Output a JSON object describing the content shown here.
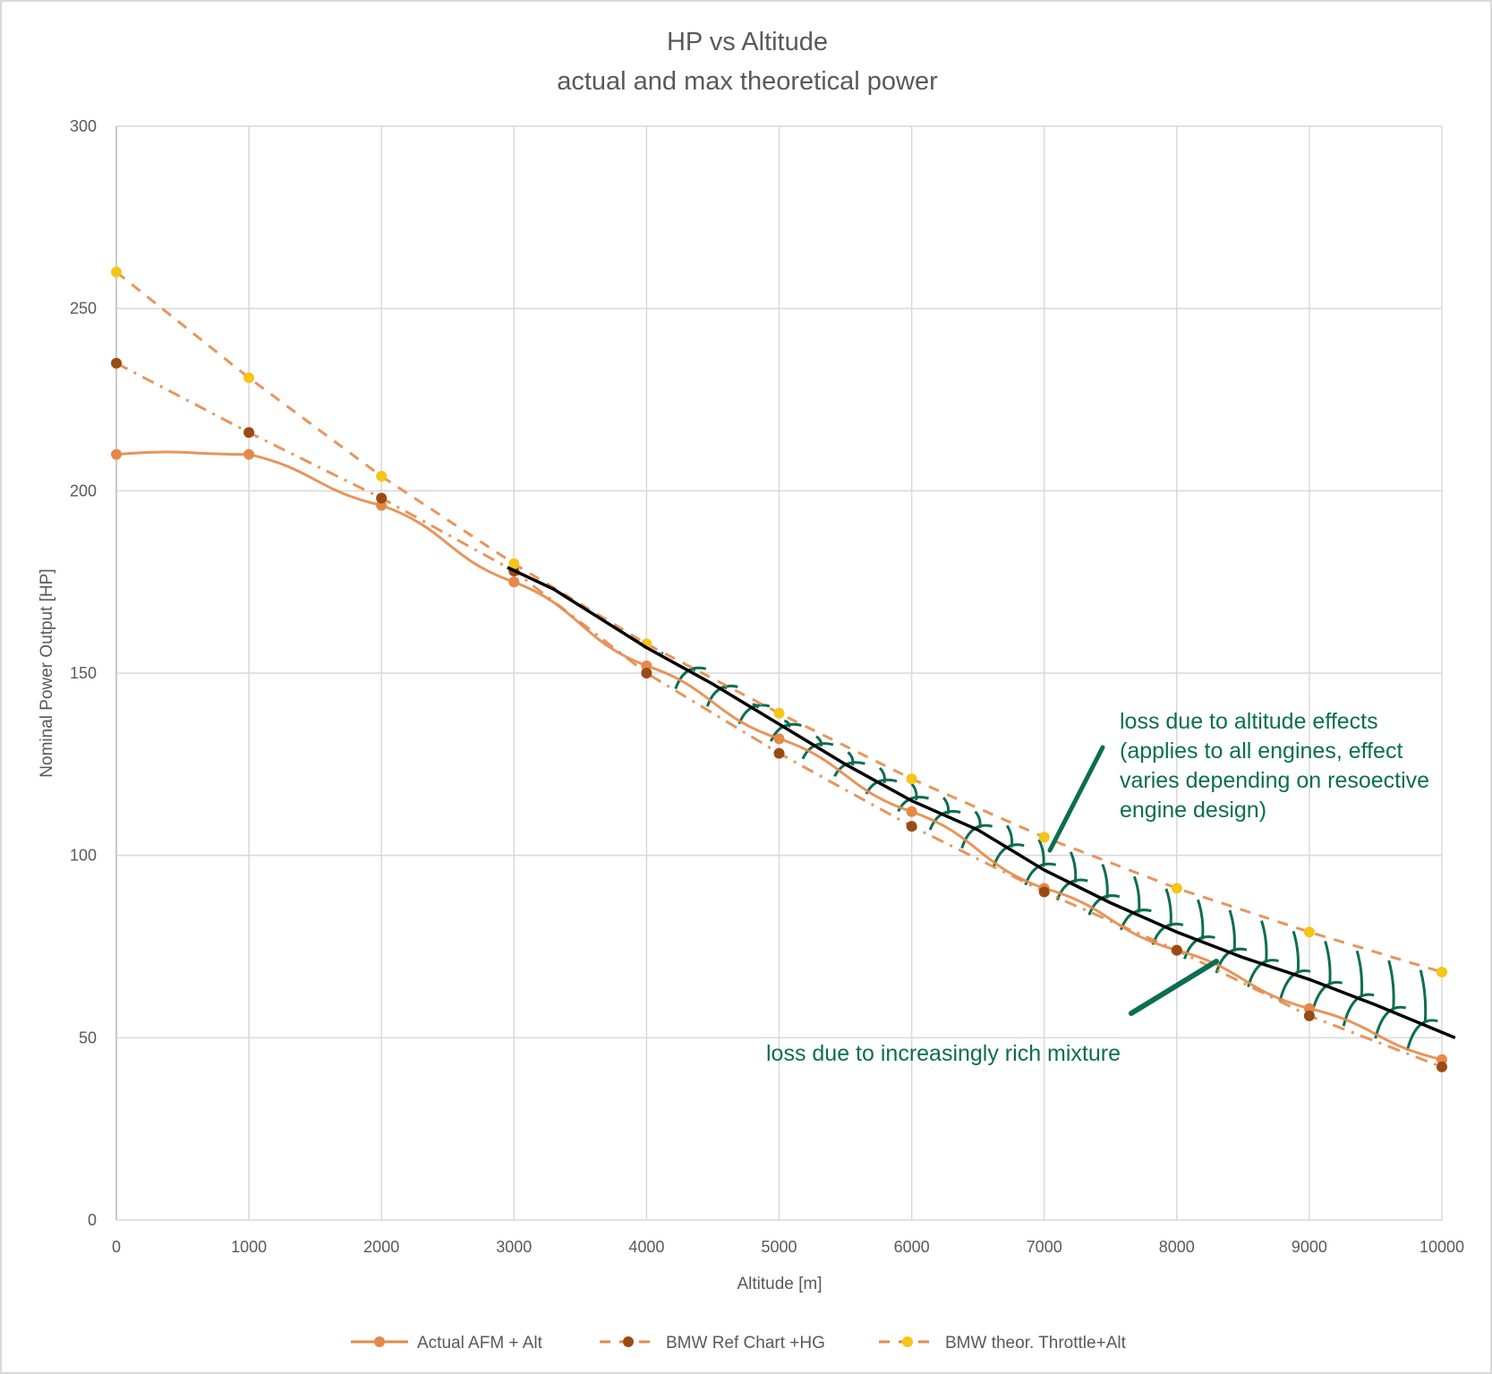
{
  "chart_data": {
    "type": "line",
    "title": "HP vs Altitude",
    "subtitle": "actual and max theoretical power",
    "xlabel": "Altitude [m]",
    "ylabel": "Nominal Power Output [HP]",
    "xlim": [
      0,
      10000
    ],
    "ylim": [
      0,
      300
    ],
    "grid": true,
    "legend_position": "bottom",
    "x": [
      0,
      1000,
      2000,
      3000,
      4000,
      5000,
      6000,
      7000,
      8000,
      9000,
      10000
    ],
    "x_ticks": [
      "0",
      "1000",
      "2000",
      "3000",
      "4000",
      "5000",
      "6000",
      "7000",
      "8000",
      "9000",
      "10000"
    ],
    "y_ticks": [
      "0",
      "50",
      "100",
      "150",
      "200",
      "250",
      "300"
    ],
    "series": [
      {
        "name": "Actual AFM + Alt",
        "style": "solid",
        "color": "#e4894a",
        "marker": "#e4894a",
        "values": [
          210,
          210,
          196,
          175,
          152,
          132,
          112,
          91,
          74,
          58,
          44
        ]
      },
      {
        "name": "BMW Ref Chart +HG",
        "style": "dashdot",
        "color": "#e4894a",
        "marker": "#9c4a14",
        "values": [
          235,
          216,
          198,
          178,
          150,
          128,
          108,
          90,
          74,
          56,
          42
        ]
      },
      {
        "name": "BMW theor. Throttle+Alt",
        "style": "dash",
        "color": "#e4894a",
        "marker": "#f5c518",
        "values": [
          260,
          231,
          204,
          180,
          158,
          139,
          121,
          105,
          91,
          79,
          68
        ]
      }
    ],
    "hand_drawn_line": {
      "color": "#000000",
      "x": [
        2950,
        3300,
        4000,
        4500,
        5000,
        5500,
        6000,
        6500,
        7000,
        7500,
        8000,
        8500,
        9000,
        9500,
        10100
      ],
      "values": [
        179,
        173,
        157,
        147,
        136,
        125,
        115,
        107,
        96,
        87,
        79,
        72,
        66,
        59,
        50
      ]
    },
    "annotations": [
      {
        "lines": [
          "loss due to altitude effects",
          "(applies to all engines, effect",
          "varies depending on resoective",
          "engine design)"
        ],
        "color": "#0b6e4f"
      },
      {
        "lines": [
          "loss due to increasingly rich mixture"
        ],
        "color": "#0b6e4f"
      }
    ]
  }
}
